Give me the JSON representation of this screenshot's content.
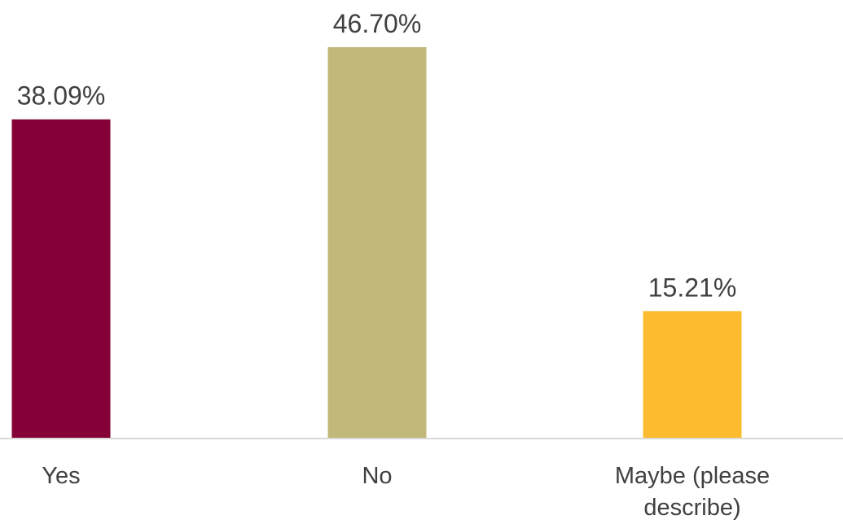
{
  "chart_data": {
    "type": "bar",
    "categories": [
      "Yes",
      "No",
      "Maybe (please describe)"
    ],
    "category_lines": [
      [
        "Yes"
      ],
      [
        "No"
      ],
      [
        "Maybe (please",
        "describe)"
      ]
    ],
    "values": [
      38.09,
      46.7,
      15.21
    ],
    "value_labels": [
      "38.09%",
      "46.70%",
      "15.21%"
    ],
    "colors": [
      "#850037",
      "#C2B87A",
      "#FDBB30"
    ],
    "title": "",
    "xlabel": "",
    "ylabel": "",
    "grid": false,
    "legend": "none"
  }
}
